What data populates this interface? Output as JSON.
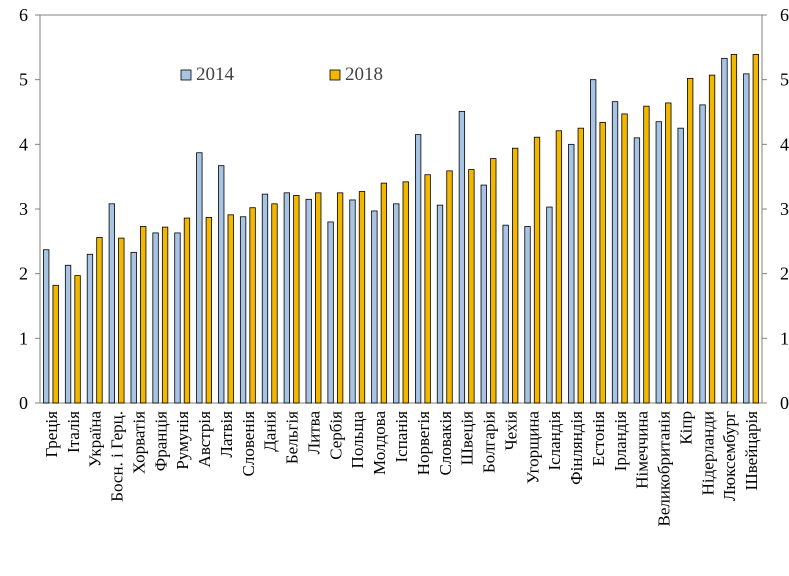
{
  "chart_data": {
    "type": "bar",
    "title": "",
    "xlabel": "",
    "ylabel": "",
    "ylim": [
      0,
      6
    ],
    "yticks": [
      0,
      1,
      2,
      3,
      4,
      5,
      6
    ],
    "right_axis_ticks": [
      "0",
      "1",
      "2",
      "3",
      "4",
      "5",
      "6"
    ],
    "legend_position": "top-left inside",
    "grid": false,
    "categories": [
      "Греція",
      "Італія",
      "Україна",
      "Босн. і Герц.",
      "Хорватія",
      "Франція",
      "Румунія",
      "Австрія",
      "Латвія",
      "Словенія",
      "Данія",
      "Бельгія",
      "Литва",
      "Сербія",
      "Польща",
      "Молдова",
      "Іспанія",
      "Норвегія",
      "Словакія",
      "Швеція",
      "Болгарія",
      "Чехія",
      "Угорщина",
      "Ісландія",
      "Фінляндія",
      "Естонія",
      "Ірландія",
      "Німеччина",
      "Великобританія",
      "Кіпр",
      "Нідерланди",
      "Люксембург",
      "Швейцарія"
    ],
    "series": [
      {
        "name": "2014",
        "color": "#a8c4e4",
        "values": [
          2.37,
          2.13,
          2.3,
          3.08,
          2.33,
          2.63,
          2.63,
          3.87,
          3.67,
          2.88,
          3.23,
          3.25,
          3.15,
          2.8,
          3.14,
          2.97,
          3.08,
          4.15,
          3.06,
          4.51,
          3.37,
          2.75,
          2.73,
          3.03,
          4.0,
          5.0,
          4.66,
          4.1,
          4.35,
          4.25,
          4.61,
          5.33,
          5.09
        ]
      },
      {
        "name": "2018",
        "color": "#f2b800",
        "values": [
          1.82,
          1.97,
          2.56,
          2.55,
          2.73,
          2.72,
          2.86,
          2.87,
          2.91,
          3.02,
          3.08,
          3.21,
          3.25,
          3.25,
          3.27,
          3.4,
          3.42,
          3.53,
          3.59,
          3.61,
          3.78,
          3.94,
          4.11,
          4.21,
          4.25,
          4.34,
          4.47,
          4.59,
          4.64,
          5.02,
          5.07,
          5.39,
          5.39
        ]
      }
    ]
  }
}
